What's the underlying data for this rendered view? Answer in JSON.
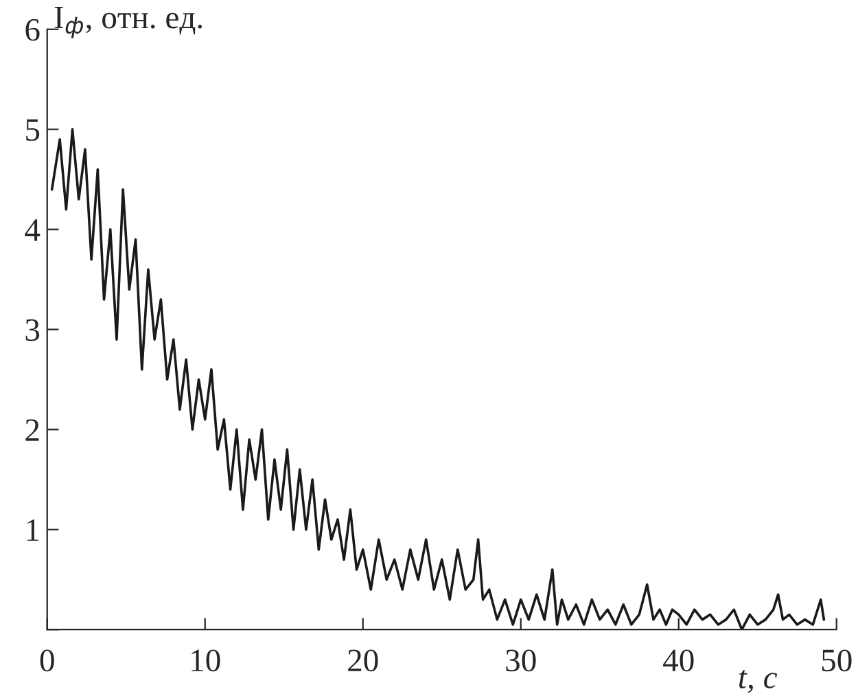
{
  "chart_data": {
    "type": "line",
    "xlabel": "t, с",
    "ylabel": "I$_{ф}$, отн. ед.",
    "x": [
      0.3,
      0.8,
      1.2,
      1.6,
      2.0,
      2.4,
      2.8,
      3.2,
      3.6,
      4.0,
      4.4,
      4.8,
      5.2,
      5.6,
      6.0,
      6.4,
      6.8,
      7.2,
      7.6,
      8.0,
      8.4,
      8.8,
      9.2,
      9.6,
      10.0,
      10.4,
      10.8,
      11.2,
      11.6,
      12.0,
      12.4,
      12.8,
      13.2,
      13.6,
      14.0,
      14.4,
      14.8,
      15.2,
      15.6,
      16.0,
      16.4,
      16.8,
      17.2,
      17.6,
      18.0,
      18.4,
      18.8,
      19.2,
      19.6,
      20.0,
      20.5,
      21.0,
      21.5,
      22.0,
      22.5,
      23.0,
      23.5,
      24.0,
      24.5,
      25.0,
      25.5,
      26.0,
      26.5,
      27.0,
      27.3,
      27.6,
      28.0,
      28.5,
      29.0,
      29.5,
      30.0,
      30.5,
      31.0,
      31.5,
      32.0,
      32.3,
      32.6,
      33.0,
      33.5,
      34.0,
      34.5,
      35.0,
      35.5,
      36.0,
      36.5,
      37.0,
      37.5,
      38.0,
      38.4,
      38.8,
      39.2,
      39.6,
      40.0,
      40.5,
      41.0,
      41.5,
      42.0,
      42.5,
      43.0,
      43.5,
      44.0,
      44.5,
      45.0,
      45.5,
      46.0,
      46.3,
      46.6,
      47.0,
      47.5,
      48.0,
      48.5,
      49.0,
      49.2
    ],
    "values": [
      4.4,
      4.9,
      4.2,
      5.0,
      4.3,
      4.8,
      3.7,
      4.6,
      3.3,
      4.0,
      2.9,
      4.4,
      3.4,
      3.9,
      2.6,
      3.6,
      2.9,
      3.3,
      2.5,
      2.9,
      2.2,
      2.7,
      2.0,
      2.5,
      2.1,
      2.6,
      1.8,
      2.1,
      1.4,
      2.0,
      1.2,
      1.9,
      1.5,
      2.0,
      1.1,
      1.7,
      1.2,
      1.8,
      1.0,
      1.6,
      1.0,
      1.5,
      0.8,
      1.3,
      0.9,
      1.1,
      0.7,
      1.2,
      0.6,
      0.8,
      0.4,
      0.9,
      0.5,
      0.7,
      0.4,
      0.8,
      0.5,
      0.9,
      0.4,
      0.7,
      0.3,
      0.8,
      0.4,
      0.5,
      0.9,
      0.3,
      0.4,
      0.1,
      0.3,
      0.05,
      0.3,
      0.1,
      0.35,
      0.1,
      0.6,
      0.05,
      0.3,
      0.1,
      0.25,
      0.05,
      0.3,
      0.1,
      0.2,
      0.05,
      0.25,
      0.05,
      0.15,
      0.45,
      0.1,
      0.2,
      0.05,
      0.2,
      0.15,
      0.05,
      0.2,
      0.1,
      0.15,
      0.05,
      0.1,
      0.2,
      0.0,
      0.15,
      0.05,
      0.1,
      0.2,
      0.35,
      0.1,
      0.15,
      0.05,
      0.1,
      0.05,
      0.3,
      0.1
    ],
    "color": "#1a1a1a",
    "xlim": [
      0,
      50
    ],
    "ylim": [
      0,
      6
    ],
    "xticks": [
      0,
      10,
      20,
      30,
      40,
      50
    ],
    "yticks": [
      {
        "value": 0,
        "label": null
      },
      1,
      2,
      3,
      4,
      5,
      6
    ],
    "grid": false,
    "legend": false
  }
}
